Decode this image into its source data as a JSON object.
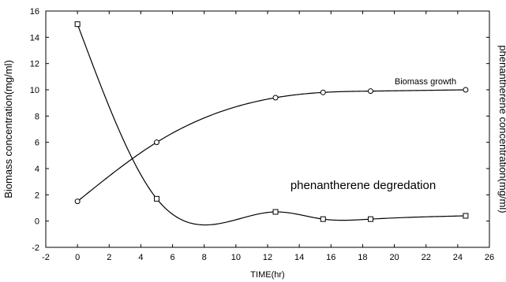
{
  "chart_data": {
    "type": "line",
    "title": "",
    "xlabel": "TIME(hr)",
    "ylabel": "Biomass concentration(mg/ml)",
    "y2label": "phenantherene concentration(mg/ml)",
    "xlim": [
      -2,
      26
    ],
    "ylim": [
      -2,
      16
    ],
    "xticks": [
      "-2",
      "0",
      "2",
      "4",
      "6",
      "8",
      "10",
      "12",
      "14",
      "16",
      "18",
      "20",
      "22",
      "24",
      "26"
    ],
    "yticks": [
      "-2",
      "0",
      "2",
      "4",
      "6",
      "8",
      "10",
      "12",
      "14",
      "16"
    ],
    "grid": false,
    "series": [
      {
        "name": "Biomass growth",
        "marker": "circle",
        "x": [
          0,
          5,
          12.5,
          15.5,
          18.5,
          24.5
        ],
        "y": [
          1.5,
          6.0,
          9.4,
          9.8,
          9.9,
          10.0
        ]
      },
      {
        "name": "phenantherene degredation",
        "marker": "square",
        "x": [
          0,
          5,
          12.5,
          15.5,
          18.5,
          24.5
        ],
        "y": [
          15.0,
          1.7,
          0.7,
          0.15,
          0.15,
          0.4
        ]
      }
    ]
  }
}
